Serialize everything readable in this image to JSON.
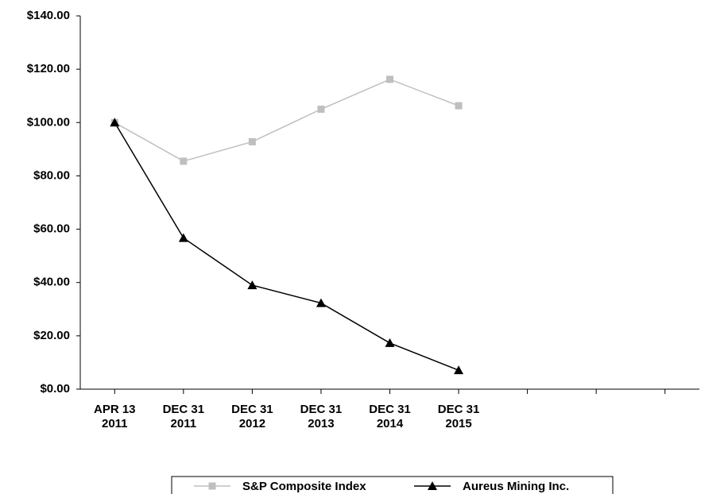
{
  "chart_data": {
    "type": "line",
    "categories": [
      "APR 13\n2011",
      "DEC 31\n2011",
      "DEC 31\n2012",
      "DEC 31\n2013",
      "DEC 31\n2014",
      "DEC 31\n2015",
      null,
      null,
      null
    ],
    "series": [
      {
        "name": "S&P Composite Index",
        "color": "#bfbfbf",
        "marker": "square",
        "values": [
          100,
          85.5,
          92.8,
          105,
          116.2,
          106.3,
          null,
          null,
          null
        ]
      },
      {
        "name": "Aureus Mining Inc.",
        "color": "#000000",
        "marker": "triangle",
        "values": [
          100,
          56.7,
          39,
          32.3,
          17.3,
          7.1,
          null,
          null,
          null
        ]
      }
    ],
    "ylim": [
      0,
      140
    ],
    "yticks": [
      {
        "value": 0,
        "label": "$0.00"
      },
      {
        "value": 20,
        "label": "$20.00"
      },
      {
        "value": 40,
        "label": "$40.00"
      },
      {
        "value": 60,
        "label": "$60.00"
      },
      {
        "value": 80,
        "label": "$80.00"
      },
      {
        "value": 100,
        "label": "$100.00"
      },
      {
        "value": 120,
        "label": "$120.00"
      },
      {
        "value": 140,
        "label": "$140.00"
      }
    ],
    "legend": "bottom"
  }
}
